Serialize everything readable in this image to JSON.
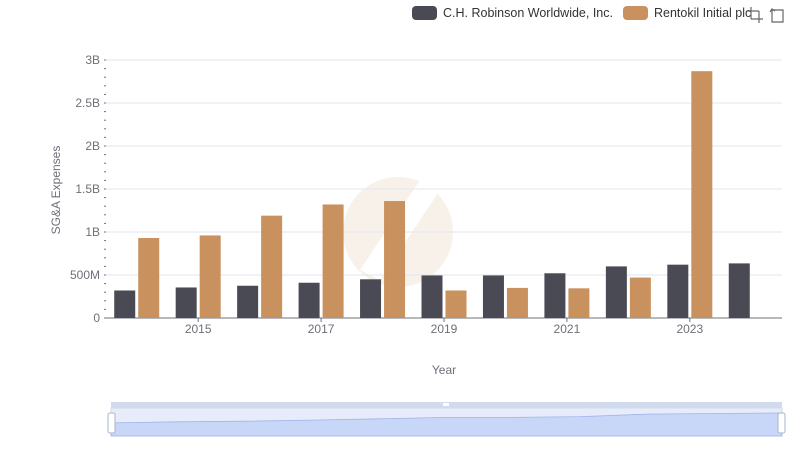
{
  "legend": {
    "items": [
      {
        "label": "C.H. Robinson Worldwide, Inc.",
        "color": "#4a4a55"
      },
      {
        "label": "Rentokil Initial plc",
        "color": "#c9915d"
      }
    ]
  },
  "toolbar": {
    "zoom_icon": "zoom-select-icon",
    "restore_icon": "restore-icon"
  },
  "chart_data": {
    "type": "bar",
    "categories": [
      "2014",
      "2015",
      "2016",
      "2017",
      "2018",
      "2019",
      "2020",
      "2021",
      "2022",
      "2023",
      "2024"
    ],
    "x_tick_labels": [
      "2015",
      "2017",
      "2019",
      "2021",
      "2023"
    ],
    "series": [
      {
        "name": "C.H. Robinson Worldwide, Inc.",
        "color": "#4a4a55",
        "values": [
          320000000,
          355000000,
          375000000,
          410000000,
          450000000,
          495000000,
          495000000,
          520000000,
          600000000,
          620000000,
          635000000
        ]
      },
      {
        "name": "Rentokil Initial plc",
        "color": "#c9915d",
        "values": [
          930000000,
          960000000,
          1190000000,
          1320000000,
          1360000000,
          320000000,
          350000000,
          345000000,
          470000000,
          2870000000,
          null
        ]
      }
    ],
    "xlabel": "Year",
    "ylabel": "SG&A Expenses",
    "ylim": [
      0,
      3000000000
    ],
    "y_ticks": [
      0,
      500000000,
      1000000000,
      1500000000,
      2000000000,
      2500000000,
      3000000000
    ],
    "y_tick_labels": [
      "0",
      "500M",
      "1B",
      "1.5B",
      "2B",
      "2.5B",
      "3B"
    ],
    "grid": true
  }
}
